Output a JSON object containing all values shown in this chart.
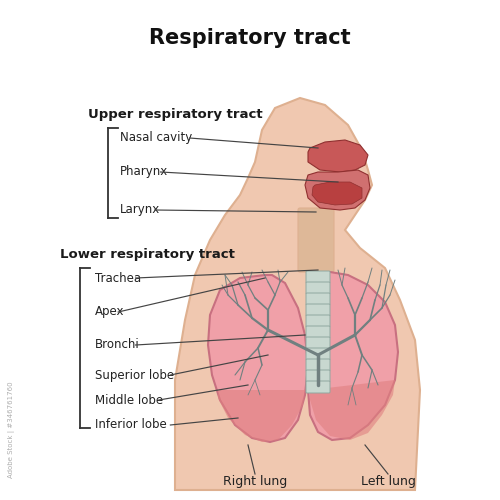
{
  "title": "Respiratory tract",
  "title_fontsize": 15,
  "title_fontweight": "bold",
  "body_color": "#F0C8B0",
  "body_outline": "#DEB090",
  "lung_fill_color": "#F0A0A8",
  "lung_outline_color": "#C87080",
  "lung_bottom_color": "#E08080",
  "upper_tract_label": "Upper respiratory tract",
  "lower_tract_label": "Lower respiratory tract",
  "upper_labels": [
    "Nasal cavity",
    "Pharynx",
    "Larynx"
  ],
  "lower_labels": [
    "Trachea",
    "Apex",
    "Bronchi",
    "Superior lobe",
    "Middle lobe",
    "Inferior lobe"
  ],
  "bottom_labels": [
    "Right lung",
    "Left lung"
  ],
  "label_fontsize": 8.5,
  "section_fontsize": 9.5,
  "bracket_color": "#333333",
  "line_color": "#444444",
  "background_color": "#FFFFFF",
  "nasal_upper_color": "#C85858",
  "nasal_lower_color": "#D07070",
  "trachea_fill": "#C8D8D0",
  "trachea_ring": "#90A8A0",
  "bronchi_color": "#708080",
  "neck_color": "#DEB898"
}
